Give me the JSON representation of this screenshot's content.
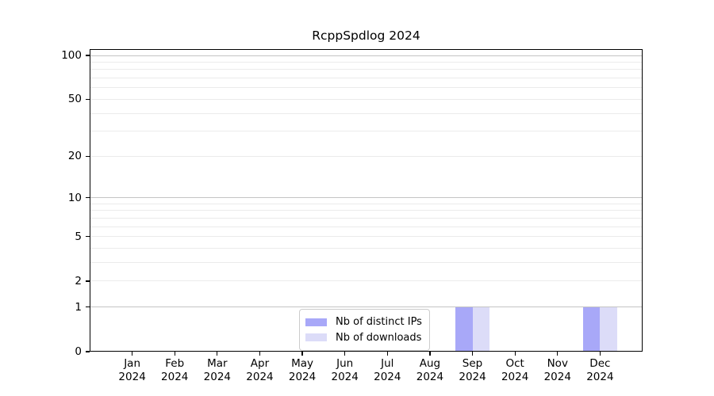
{
  "chart_data": {
    "type": "bar",
    "title": "RcppSpdlog 2024",
    "categories": [
      "Jan 2024",
      "Feb 2024",
      "Mar 2024",
      "Apr 2024",
      "May 2024",
      "Jun 2024",
      "Jul 2024",
      "Aug 2024",
      "Sep 2024",
      "Oct 2024",
      "Nov 2024",
      "Dec 2024"
    ],
    "series": [
      {
        "name": "Nb of distinct IPs",
        "color": "#a8a8f8",
        "values": [
          0,
          0,
          0,
          0,
          0,
          0,
          0,
          0,
          1,
          0,
          0,
          1
        ]
      },
      {
        "name": "Nb of downloads",
        "color": "#dcdcf8",
        "values": [
          0,
          0,
          0,
          0,
          0,
          0,
          0,
          0,
          1,
          0,
          0,
          1
        ]
      }
    ],
    "xlabel": "",
    "ylabel": "",
    "yscale": "log1p",
    "ylim": [
      0,
      110
    ],
    "y_tick_labels": [
      100,
      50,
      20,
      10,
      5,
      2,
      1,
      0
    ],
    "y_major_gridlines": [
      1,
      10,
      100
    ],
    "y_minor_gridlines": [
      2,
      3,
      4,
      5,
      6,
      7,
      8,
      9,
      20,
      30,
      40,
      50,
      60,
      70,
      80,
      90
    ],
    "grid": true,
    "legend_position": "lower center"
  },
  "colors": {
    "bar_distinct_ips": "#a8a8f8",
    "bar_downloads": "#dcdcf8",
    "major_gridline": "#c4c4c4",
    "minor_gridline": "#ebebeb",
    "spine": "#000000",
    "legend_border": "#cccccc",
    "background": "#ffffff"
  }
}
